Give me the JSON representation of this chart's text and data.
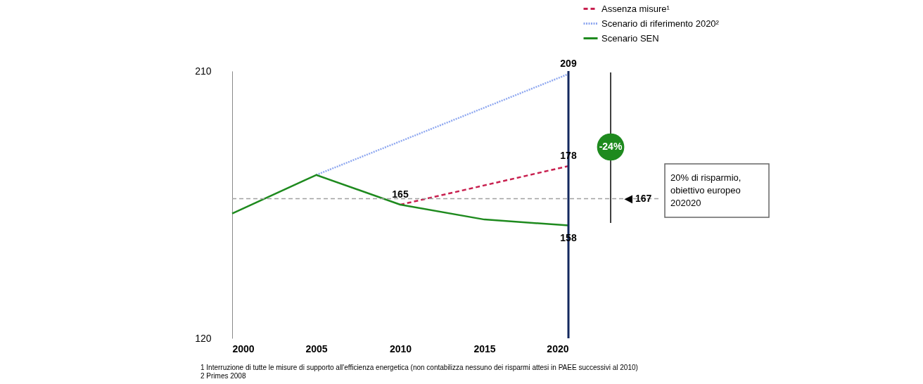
{
  "chart_data": {
    "type": "line",
    "series": [
      {
        "name": "Assenza misure¹",
        "color": "#c8204f",
        "line_style": "dashed",
        "x": [
          2010,
          2020
        ],
        "values": [
          165,
          178
        ],
        "value_labels": [
          "165",
          "178"
        ]
      },
      {
        "name": "Scenario di riferimento 2020²",
        "color": "#8fa8f0",
        "line_style": "dotted",
        "x": [
          2005,
          2020
        ],
        "values": [
          175,
          209
        ],
        "value_labels": [
          null,
          "209"
        ]
      },
      {
        "name": "Scenario SEN",
        "color": "#1e8a1e",
        "line_style": "solid",
        "x": [
          2000,
          2005,
          2010,
          2015,
          2020
        ],
        "values": [
          162,
          175,
          165,
          160,
          158
        ],
        "value_labels": [
          null,
          null,
          null,
          null,
          "158"
        ]
      }
    ],
    "xlim": [
      2000,
      2020
    ],
    "xticks": [
      2000,
      2005,
      2010,
      2015,
      2020
    ],
    "ylim": [
      120,
      210
    ],
    "yticks": [
      120,
      210
    ],
    "grid": false,
    "legend": "top right",
    "marker": "none",
    "ref_lines": [
      {
        "axis": "y",
        "value": 167,
        "label": "◀ 167",
        "color": "#a0a0a0",
        "line_style": "dashed"
      },
      {
        "axis": "x",
        "value": 2020,
        "label": null,
        "color": "#13285e",
        "line_style": "solid"
      }
    ],
    "annotations": [
      "-24%",
      "20% di risparmio, obiettivo europeo 202020",
      "1 Interruzione di tutte le misure di supporto all'efficienza energetica (non contabilizza nessuno dei risparmi attesi in PAEE successivi al 2010)",
      "2 Primes 2008"
    ]
  }
}
